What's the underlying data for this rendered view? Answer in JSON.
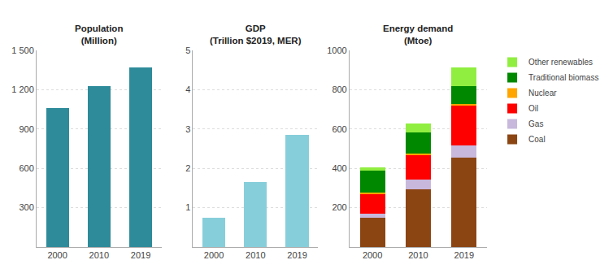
{
  "chart_data": [
    {
      "type": "bar",
      "title": "Population",
      "subtitle": "(Million)",
      "categories": [
        "2000",
        "2010",
        "2019"
      ],
      "values": [
        1060,
        1230,
        1370
      ],
      "color": "#2e8b9a",
      "ylim": [
        0,
        1500
      ],
      "yticks": [
        300,
        600,
        900,
        {
          "value": 1200,
          "label": "1 200"
        },
        {
          "value": 1500,
          "label": "1 500"
        }
      ],
      "grid": true
    },
    {
      "type": "bar",
      "title": "GDP",
      "subtitle": "(Trillion $2019, MER)",
      "categories": [
        "2000",
        "2010",
        "2019"
      ],
      "values": [
        0.75,
        1.65,
        2.85
      ],
      "color": "#87cedb",
      "ylim": [
        0,
        5
      ],
      "yticks": [
        1,
        2,
        3,
        4,
        5
      ],
      "grid": true
    },
    {
      "type": "bar",
      "title": "Energy demand",
      "subtitle": "(Mtoe)",
      "categories": [
        "2000",
        "2010",
        "2019"
      ],
      "stacked": true,
      "series": [
        {
          "name": "Coal",
          "color": "#8B4513",
          "values": [
            148,
            295,
            455
          ]
        },
        {
          "name": "Gas",
          "color": "#c8b8dc",
          "values": [
            22,
            48,
            62
          ]
        },
        {
          "name": "Oil",
          "color": "#ff0000",
          "values": [
            100,
            125,
            200
          ]
        },
        {
          "name": "Nuclear",
          "color": "#ffa500",
          "values": [
            5,
            8,
            10
          ]
        },
        {
          "name": "Traditional biomass",
          "color": "#008800",
          "values": [
            112,
            108,
            90
          ]
        },
        {
          "name": "Other renewables",
          "color": "#90ee40",
          "values": [
            18,
            45,
            95
          ]
        }
      ],
      "ylim": [
        0,
        1000
      ],
      "yticks": [
        200,
        400,
        600,
        800,
        1000
      ],
      "grid": true,
      "legend": "right"
    }
  ]
}
